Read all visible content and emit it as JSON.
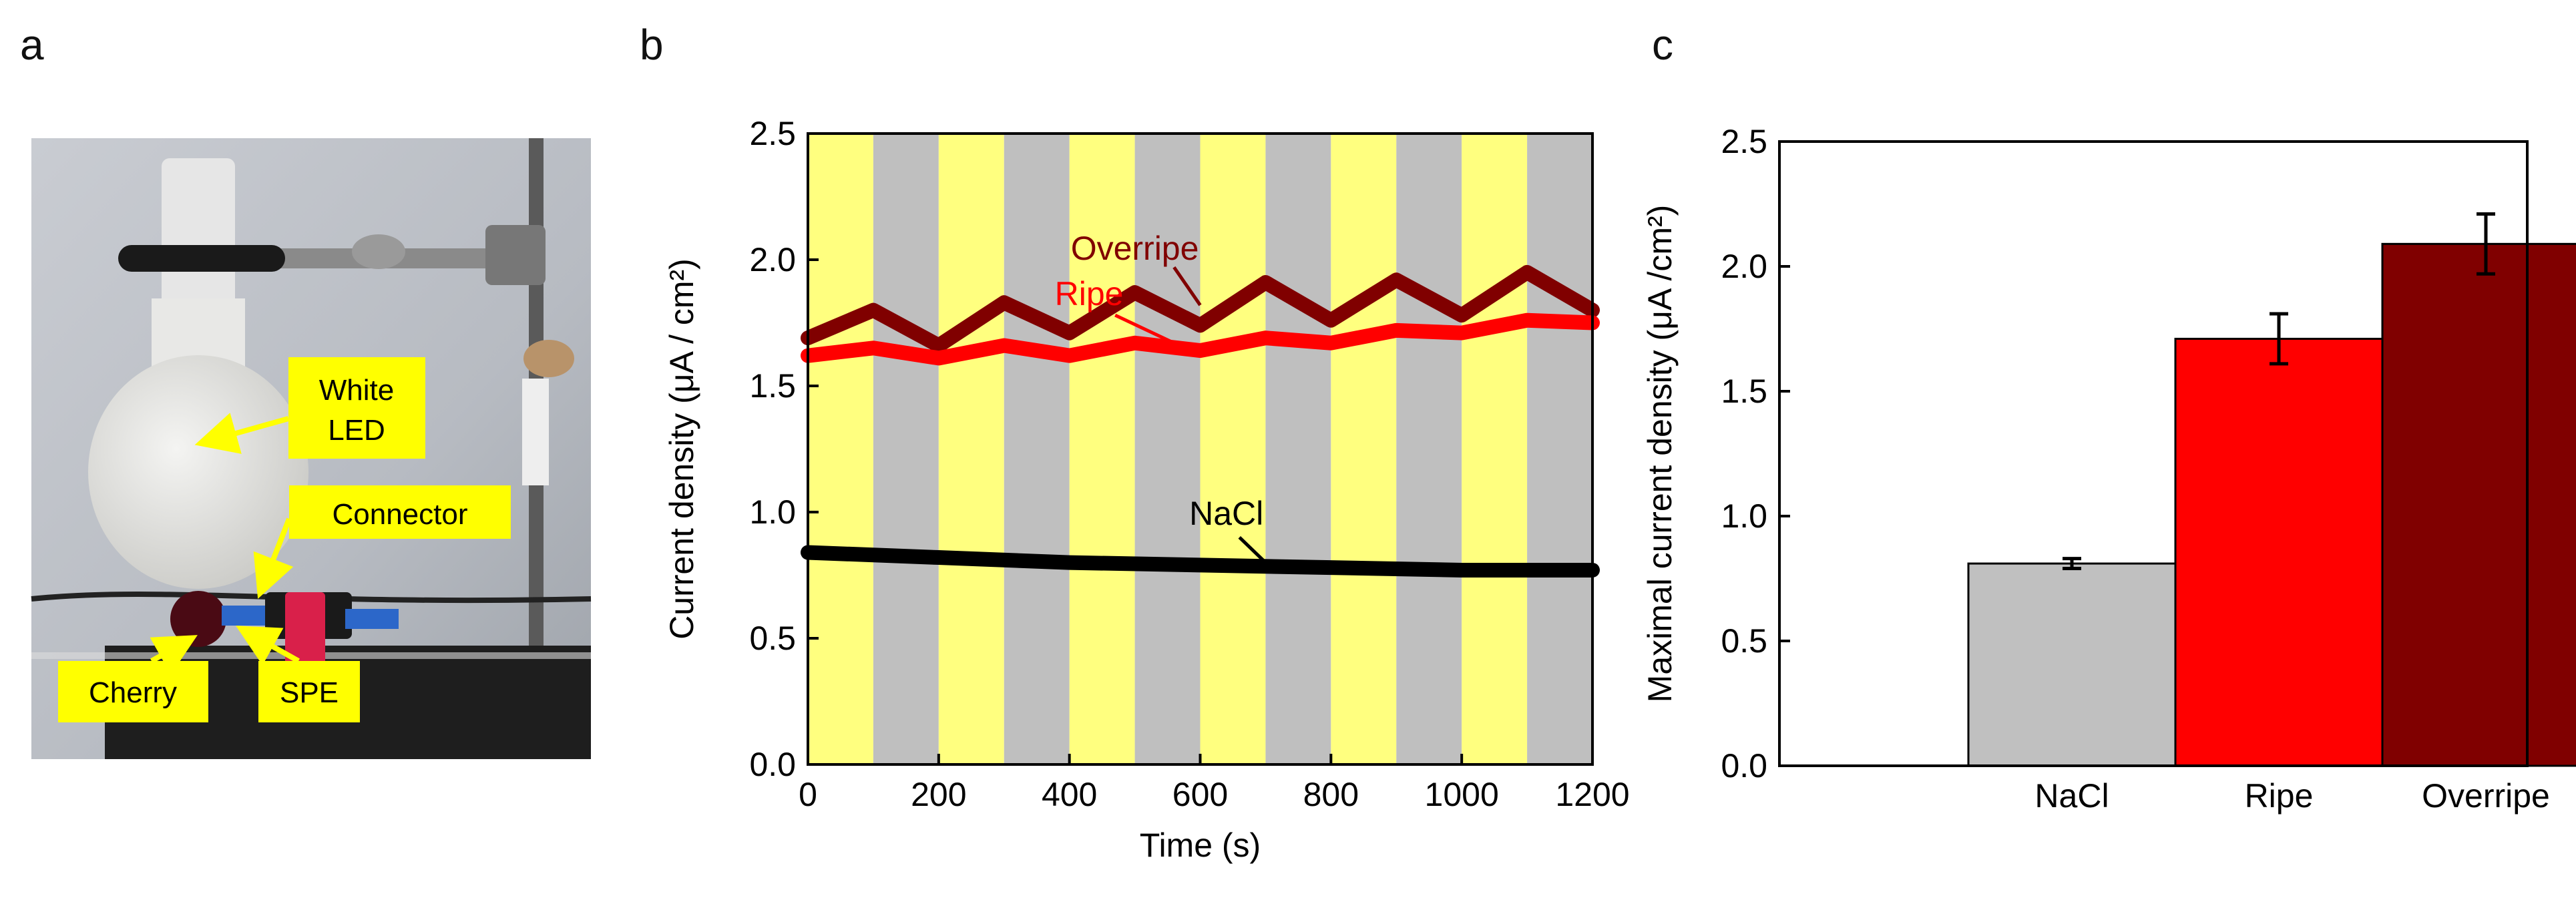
{
  "panels": {
    "a": "a",
    "b": "b",
    "c": "c"
  },
  "photo": {
    "labels": {
      "white_led": [
        "White",
        "LED"
      ],
      "connector": "Connector",
      "cherry": "Cherry",
      "spe": "SPE"
    },
    "colors": {
      "label_bg": "#ffff00",
      "arrow": "#ffff00"
    }
  },
  "chart_data": [
    {
      "type": "line",
      "xlabel": "Time (s)",
      "ylabel": "Current density (μA / cm²)",
      "xlim": [
        0,
        1200
      ],
      "ylim": [
        0,
        2.5
      ],
      "xticks": [
        "0",
        "200",
        "400",
        "600",
        "800",
        "1000",
        "1200"
      ],
      "yticks": [
        "0.0",
        "0.5",
        "1.0",
        "1.5",
        "2.0",
        "2.5"
      ],
      "background_bands": {
        "period_s": 100,
        "on_color": "#ffff7f",
        "off_color": "#bfbfbf",
        "intervals": [
          [
            0,
            100,
            "on"
          ],
          [
            100,
            200,
            "off"
          ],
          [
            200,
            300,
            "on"
          ],
          [
            300,
            400,
            "off"
          ],
          [
            400,
            500,
            "on"
          ],
          [
            500,
            600,
            "off"
          ],
          [
            600,
            700,
            "on"
          ],
          [
            700,
            800,
            "off"
          ],
          [
            800,
            900,
            "on"
          ],
          [
            900,
            1000,
            "off"
          ],
          [
            1000,
            1100,
            "on"
          ],
          [
            1100,
            1200,
            "off"
          ]
        ]
      },
      "series": [
        {
          "name": "Overripe",
          "color": "#800000",
          "x": [
            0,
            100,
            200,
            300,
            400,
            500,
            600,
            700,
            800,
            900,
            1000,
            1100,
            1200
          ],
          "y": [
            1.69,
            1.8,
            1.66,
            1.83,
            1.71,
            1.87,
            1.74,
            1.91,
            1.76,
            1.92,
            1.78,
            1.95,
            1.8
          ]
        },
        {
          "name": "Ripe",
          "color": "#ff0000",
          "x": [
            0,
            100,
            200,
            300,
            400,
            500,
            600,
            700,
            800,
            900,
            1000,
            1100,
            1200
          ],
          "y": [
            1.62,
            1.65,
            1.61,
            1.66,
            1.62,
            1.67,
            1.64,
            1.69,
            1.67,
            1.72,
            1.71,
            1.76,
            1.75
          ]
        },
        {
          "name": "NaCl",
          "color": "#000000",
          "x": [
            0,
            200,
            400,
            600,
            800,
            1000,
            1200
          ],
          "y": [
            0.84,
            0.82,
            0.8,
            0.79,
            0.78,
            0.77,
            0.77
          ]
        }
      ],
      "annotations": [
        {
          "text": "Overripe",
          "color": "#800000",
          "x": 500,
          "y": 2.0
        },
        {
          "text": "Ripe",
          "color": "#ff0000",
          "x": 430,
          "y": 1.82
        },
        {
          "text": "NaCl",
          "color": "#000000",
          "x": 640,
          "y": 0.95
        }
      ]
    },
    {
      "type": "bar",
      "ylabel": "Maximal current density (μA /cm²)",
      "categories": [
        "NaCl",
        "Ripe",
        "Overripe"
      ],
      "values": [
        0.81,
        1.71,
        2.09
      ],
      "errors": [
        0.02,
        0.1,
        0.12
      ],
      "colors": [
        "#c0c0c0",
        "#ff0000",
        "#800000"
      ],
      "ylim": [
        0,
        2.5
      ],
      "yticks": [
        "0.0",
        "0.5",
        "1.0",
        "1.5",
        "2.0",
        "2.5"
      ]
    }
  ]
}
